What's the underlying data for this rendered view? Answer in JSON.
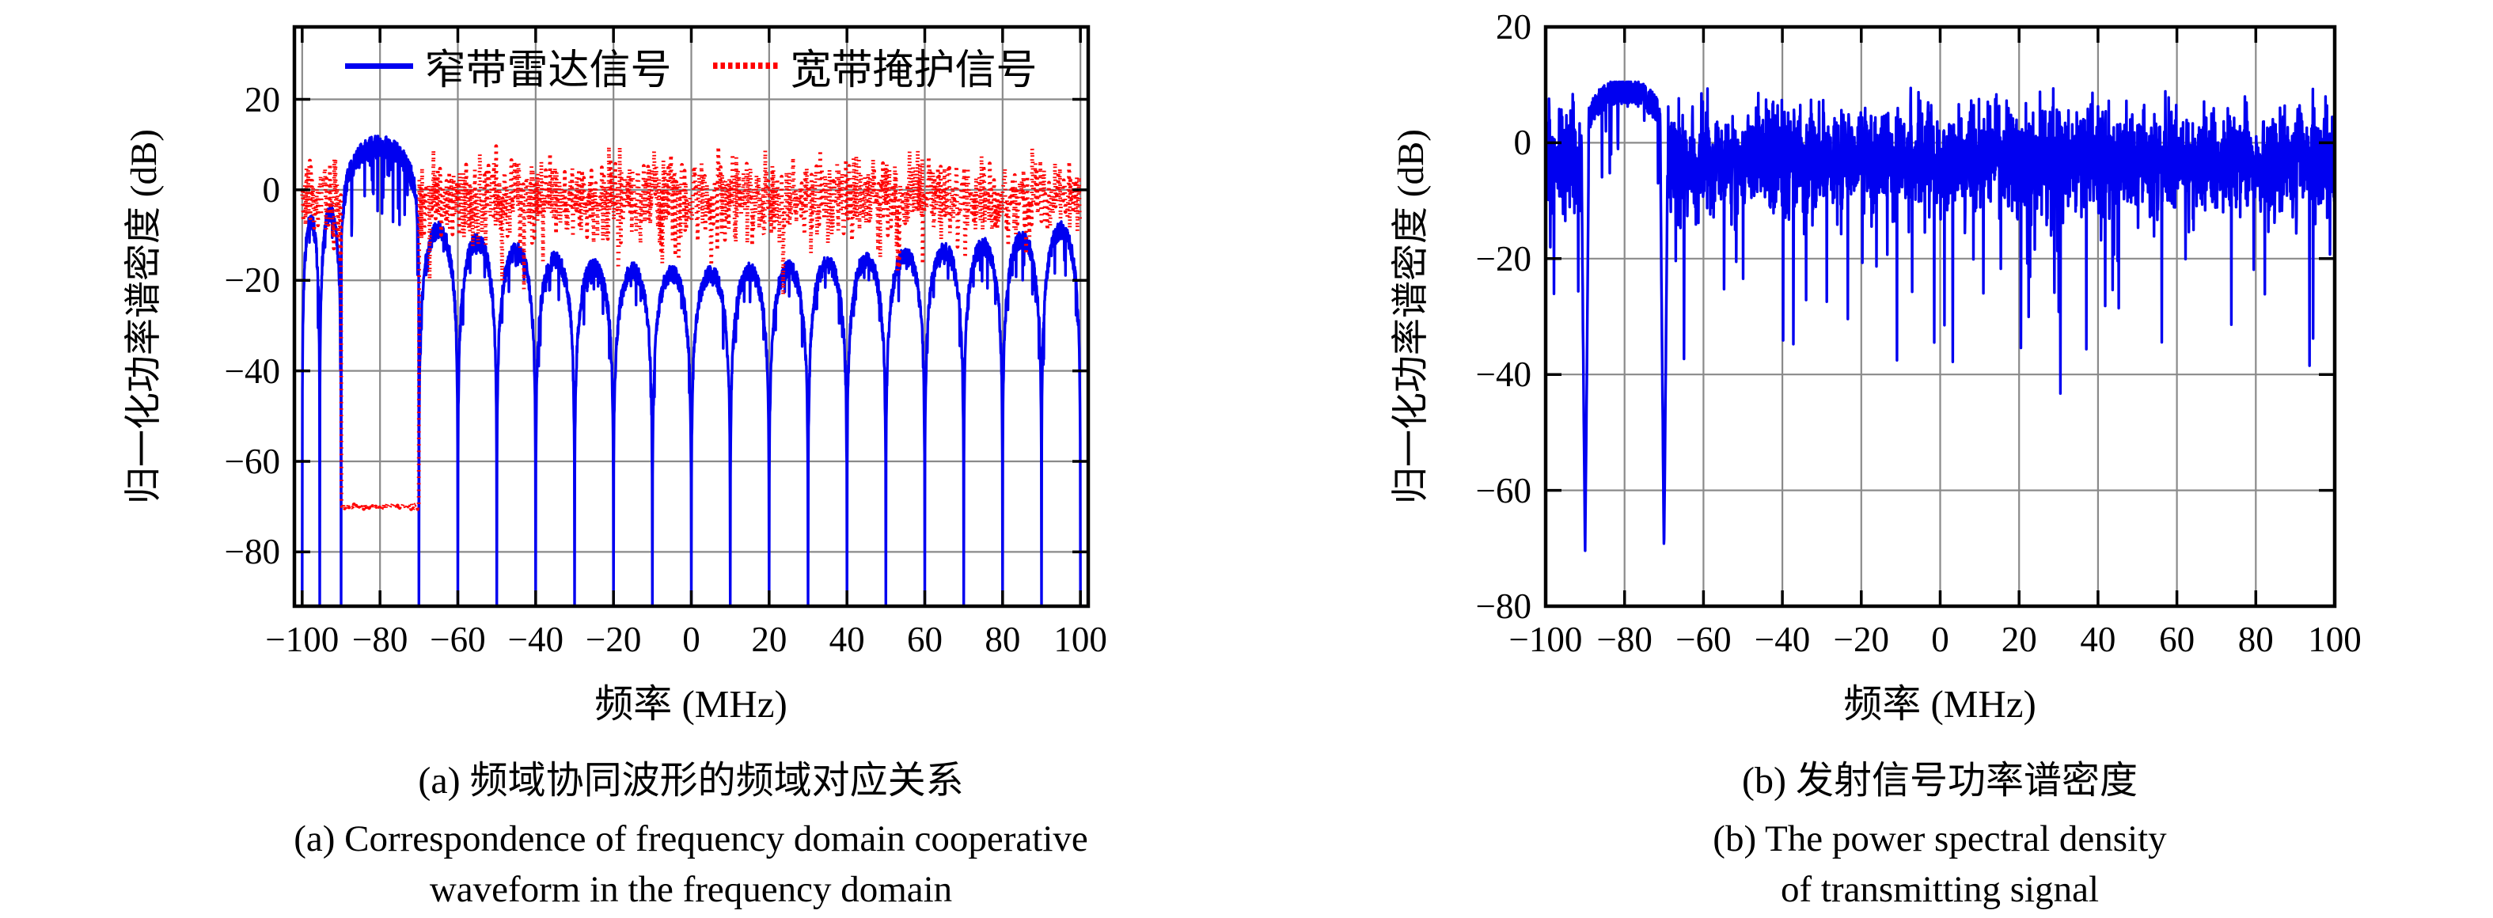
{
  "colors": {
    "narrowband_signal": "#0000f0",
    "wideband_signal": "#ff0000",
    "transmit_signal": "#0000f0",
    "grid": "#8a8a8a",
    "axis": "#000000",
    "background": "#ffffff"
  },
  "panel_a": {
    "ylabel": "归一化功率谱密度 (dB)",
    "xlabel": "频率 (MHz)",
    "legend": {
      "items": [
        {
          "label": "窄带雷达信号",
          "color": "#0000f0",
          "style": "solid"
        },
        {
          "label": "宽带掩护信号",
          "color": "#ff0000",
          "style": "dotted"
        }
      ]
    },
    "caption_zh": "(a) 频域协同波形的频域对应关系",
    "caption_en_line1": "(a) Correspondence of frequency domain cooperative",
    "caption_en_line2": "waveform in the frequency domain"
  },
  "panel_b": {
    "ylabel": "归一化功率谱密度 (dB)",
    "xlabel": "频率 (MHz)",
    "caption_zh": "(b) 发射信号功率谱密度",
    "caption_en_line1": "(b) The power spectral density",
    "caption_en_line2": "of transmitting signal"
  },
  "chart_data": [
    {
      "type": "line",
      "panel": "a",
      "title": "",
      "xlabel": "频率 (MHz)",
      "ylabel": "归一化功率谱密度 (dB)",
      "xlim": [
        -102,
        102
      ],
      "ylim": [
        -92,
        36
      ],
      "xticks": [
        -100,
        -80,
        -60,
        -40,
        -20,
        0,
        20,
        40,
        60,
        80,
        100
      ],
      "x_tick_labels": [
        "−100",
        "−80",
        "−60",
        "−40",
        "−20",
        "0",
        "20",
        "40",
        "60",
        "80",
        "100"
      ],
      "yticks": [
        20,
        0,
        -20,
        -40,
        -60,
        -80
      ],
      "y_tick_labels": [
        "20",
        "0",
        "−20",
        "−40",
        "−60",
        "−80"
      ],
      "grid": true,
      "legend_position": "top-inside",
      "series": [
        {
          "name": "窄带雷达信号",
          "color": "#0000f0",
          "style": "solid",
          "model": {
            "kind": "harmonic-lobes",
            "step_mhz": 0.06,
            "noise_db": 2,
            "main_ripple_db": 5,
            "seed": 9,
            "lobes": [
              {
                "from": -100,
                "to": -95.5,
                "peak_db": -7
              },
              {
                "from": -95.5,
                "to": -90,
                "peak_db": -5
              },
              {
                "from": -90,
                "to": -70,
                "peak_db": 9.5,
                "main": true
              },
              {
                "from": -70,
                "to": -60,
                "peak_db": -9
              },
              {
                "from": -60,
                "to": -50,
                "peak_db": -11.5
              },
              {
                "from": -50,
                "to": -40,
                "peak_db": -13.5
              },
              {
                "from": -40,
                "to": -30,
                "peak_db": -15.5
              },
              {
                "from": -30,
                "to": -20,
                "peak_db": -17
              },
              {
                "from": -20,
                "to": -10,
                "peak_db": -18
              },
              {
                "from": -10,
                "to": 0,
                "peak_db": -18.5
              },
              {
                "from": 0,
                "to": 10,
                "peak_db": -18.5
              },
              {
                "from": 10,
                "to": 20,
                "peak_db": -18
              },
              {
                "from": 20,
                "to": 30,
                "peak_db": -17.5
              },
              {
                "from": 30,
                "to": 40,
                "peak_db": -16.5
              },
              {
                "from": 40,
                "to": 50,
                "peak_db": -15.5
              },
              {
                "from": 50,
                "to": 60,
                "peak_db": -14.5
              },
              {
                "from": 60,
                "to": 70,
                "peak_db": -13.5
              },
              {
                "from": 70,
                "to": 80,
                "peak_db": -12.5
              },
              {
                "from": 80,
                "to": 90,
                "peak_db": -11
              },
              {
                "from": 90,
                "to": 100,
                "peak_db": -9
              }
            ]
          }
        },
        {
          "name": "宽带掩护信号",
          "color": "#ff0000",
          "style": "dotted",
          "model": {
            "kind": "noise-with-notch",
            "step_mhz": 0.14,
            "mean_db": -1.5,
            "std_db": 4.2,
            "max_db": 9.8,
            "min_db": -28,
            "dip_prob": 0.05,
            "notch": {
              "from": -90,
              "to": -70,
              "floor_db": -70
            },
            "seed": 20
          }
        }
      ],
      "annotations": {
        "radar_main_lobe_range_mhz": [
          -90,
          -70
        ],
        "radar_main_lobe_peak_db": 9.5,
        "cover_notch_floor_db": -70,
        "sidelobe_null_spacing_mhz": 10
      }
    },
    {
      "type": "line",
      "panel": "b",
      "title": "",
      "xlabel": "频率 (MHz)",
      "ylabel": "归一化功率谱密度 (dB)",
      "xlim": [
        -100,
        100
      ],
      "ylim": [
        -80,
        20
      ],
      "xticks": [
        -100,
        -80,
        -60,
        -40,
        -20,
        0,
        20,
        40,
        60,
        80,
        100
      ],
      "x_tick_labels": [
        "−100",
        "−80",
        "−60",
        "−40",
        "−20",
        "0",
        "20",
        "40",
        "60",
        "80",
        "100"
      ],
      "yticks": [
        20,
        0,
        -20,
        -40,
        -60,
        -80
      ],
      "y_tick_labels": [
        "20",
        "0",
        "−20",
        "−40",
        "−60",
        "−80"
      ],
      "grid": true,
      "series": [
        {
          "name": "发射信号功率谱密度",
          "color": "#0000f0",
          "style": "solid",
          "model": {
            "kind": "noise-hump-notches",
            "step_mhz": 0.07,
            "mean_db": -3.2,
            "std_db": 4.6,
            "max_db": 9.5,
            "deep_spike_prob": 0.018,
            "hump": {
              "from": -90,
              "to": -70,
              "peak_db": 10
            },
            "notches": [
              {
                "center": -90,
                "half_width": 0.9,
                "floor_db": -71
              },
              {
                "center": -70,
                "half_width": 0.9,
                "floor_db": -71
              }
            ],
            "seed": 33
          }
        }
      ],
      "annotations": {
        "notch_centers_mhz": [
          -90,
          -70
        ],
        "notch_depth_db": -71,
        "hump_peak_db": 10
      }
    }
  ]
}
